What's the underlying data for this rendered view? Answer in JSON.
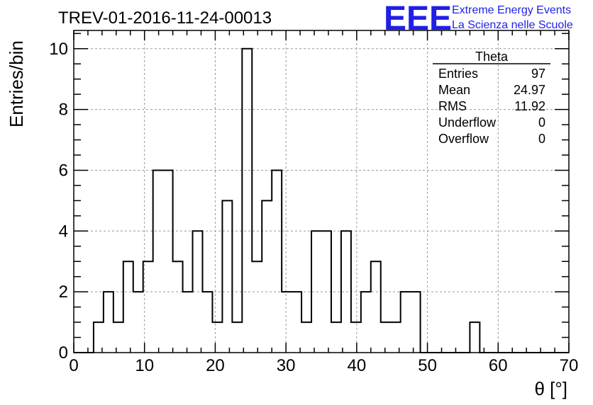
{
  "chart_data": {
    "type": "bar",
    "title": "TREV-01-2016-11-24-00013",
    "xlabel": "θ [°]",
    "ylabel": "Entries/bin",
    "xlim": [
      0,
      70
    ],
    "ylim": [
      0,
      10.6
    ],
    "x_ticks": [
      0,
      10,
      20,
      30,
      40,
      50,
      60,
      70
    ],
    "y_ticks": [
      0,
      2,
      4,
      6,
      8,
      10
    ],
    "grid": true,
    "bin_width": 1.4,
    "bins_start": 0,
    "values": [
      0,
      0,
      1,
      2,
      1,
      3,
      2,
      3,
      6,
      6,
      3,
      2,
      4,
      2,
      1,
      5,
      1,
      10,
      3,
      5,
      6,
      2,
      2,
      1,
      4,
      4,
      1,
      4,
      1,
      2,
      3,
      1,
      1,
      2,
      2,
      0,
      0,
      0,
      0,
      0,
      1,
      0,
      0,
      0,
      0,
      0,
      0,
      0,
      0,
      0
    ]
  },
  "stats_box": {
    "name": "Theta",
    "rows": [
      {
        "label": "Entries",
        "value": "97"
      },
      {
        "label": "Mean",
        "value": "24.97"
      },
      {
        "label": "RMS",
        "value": "11.92"
      },
      {
        "label": "Underflow",
        "value": "0"
      },
      {
        "label": "Overflow",
        "value": "0"
      }
    ]
  },
  "logo": {
    "mark": "EEE",
    "line1": "Extreme Energy Events",
    "line2": "La Scienza nelle Scuole",
    "color": "#1f1fe6"
  }
}
